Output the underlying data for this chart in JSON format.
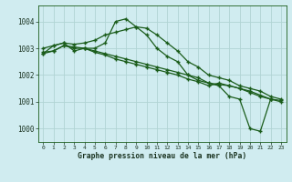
{
  "title": "Graphe pression niveau de la mer (hPa)",
  "background_color": "#d0ecf0",
  "grid_color": "#b0d4d4",
  "line_color": "#1a5c1a",
  "xmin": -0.5,
  "xmax": 23.5,
  "ymin": 999.5,
  "ymax": 1004.6,
  "yticks": [
    1000,
    1001,
    1002,
    1003,
    1004
  ],
  "xticks": [
    0,
    1,
    2,
    3,
    4,
    5,
    6,
    7,
    8,
    9,
    10,
    11,
    12,
    13,
    14,
    15,
    16,
    17,
    18,
    19,
    20,
    21,
    22,
    23
  ],
  "series": [
    [
      1002.8,
      1003.1,
      1003.2,
      1002.9,
      1003.0,
      1003.0,
      1003.2,
      1004.0,
      1004.1,
      1003.8,
      1003.5,
      1003.0,
      1002.7,
      1002.5,
      1002.0,
      1001.8,
      1001.7,
      1001.6,
      1001.2,
      1001.1,
      1000.0,
      999.9,
      1001.1,
      null
    ],
    [
      1003.0,
      1003.1,
      1003.2,
      1003.15,
      1003.2,
      1003.3,
      1003.5,
      1003.6,
      1003.7,
      1003.8,
      1003.75,
      1003.5,
      1003.2,
      1002.9,
      1002.5,
      1002.3,
      1002.0,
      1001.9,
      1001.8,
      1001.6,
      1001.5,
      1001.4,
      1001.2,
      1001.1
    ],
    [
      1002.85,
      1002.9,
      1003.1,
      1003.0,
      1003.0,
      1002.9,
      1002.8,
      1002.7,
      1002.6,
      1002.5,
      1002.4,
      1002.3,
      1002.2,
      1002.1,
      1002.0,
      1001.9,
      1001.7,
      1001.65,
      1001.6,
      1001.5,
      1001.4,
      1001.25,
      1001.1,
      1001.0
    ],
    [
      1002.8,
      1002.9,
      1003.1,
      1003.05,
      1003.0,
      1002.85,
      1002.75,
      1002.6,
      1002.5,
      1002.4,
      1002.3,
      1002.2,
      1002.1,
      1002.0,
      1001.85,
      1001.75,
      1001.6,
      1001.7,
      1001.6,
      1001.5,
      1001.35,
      1001.2,
      1001.1,
      1001.05
    ]
  ]
}
